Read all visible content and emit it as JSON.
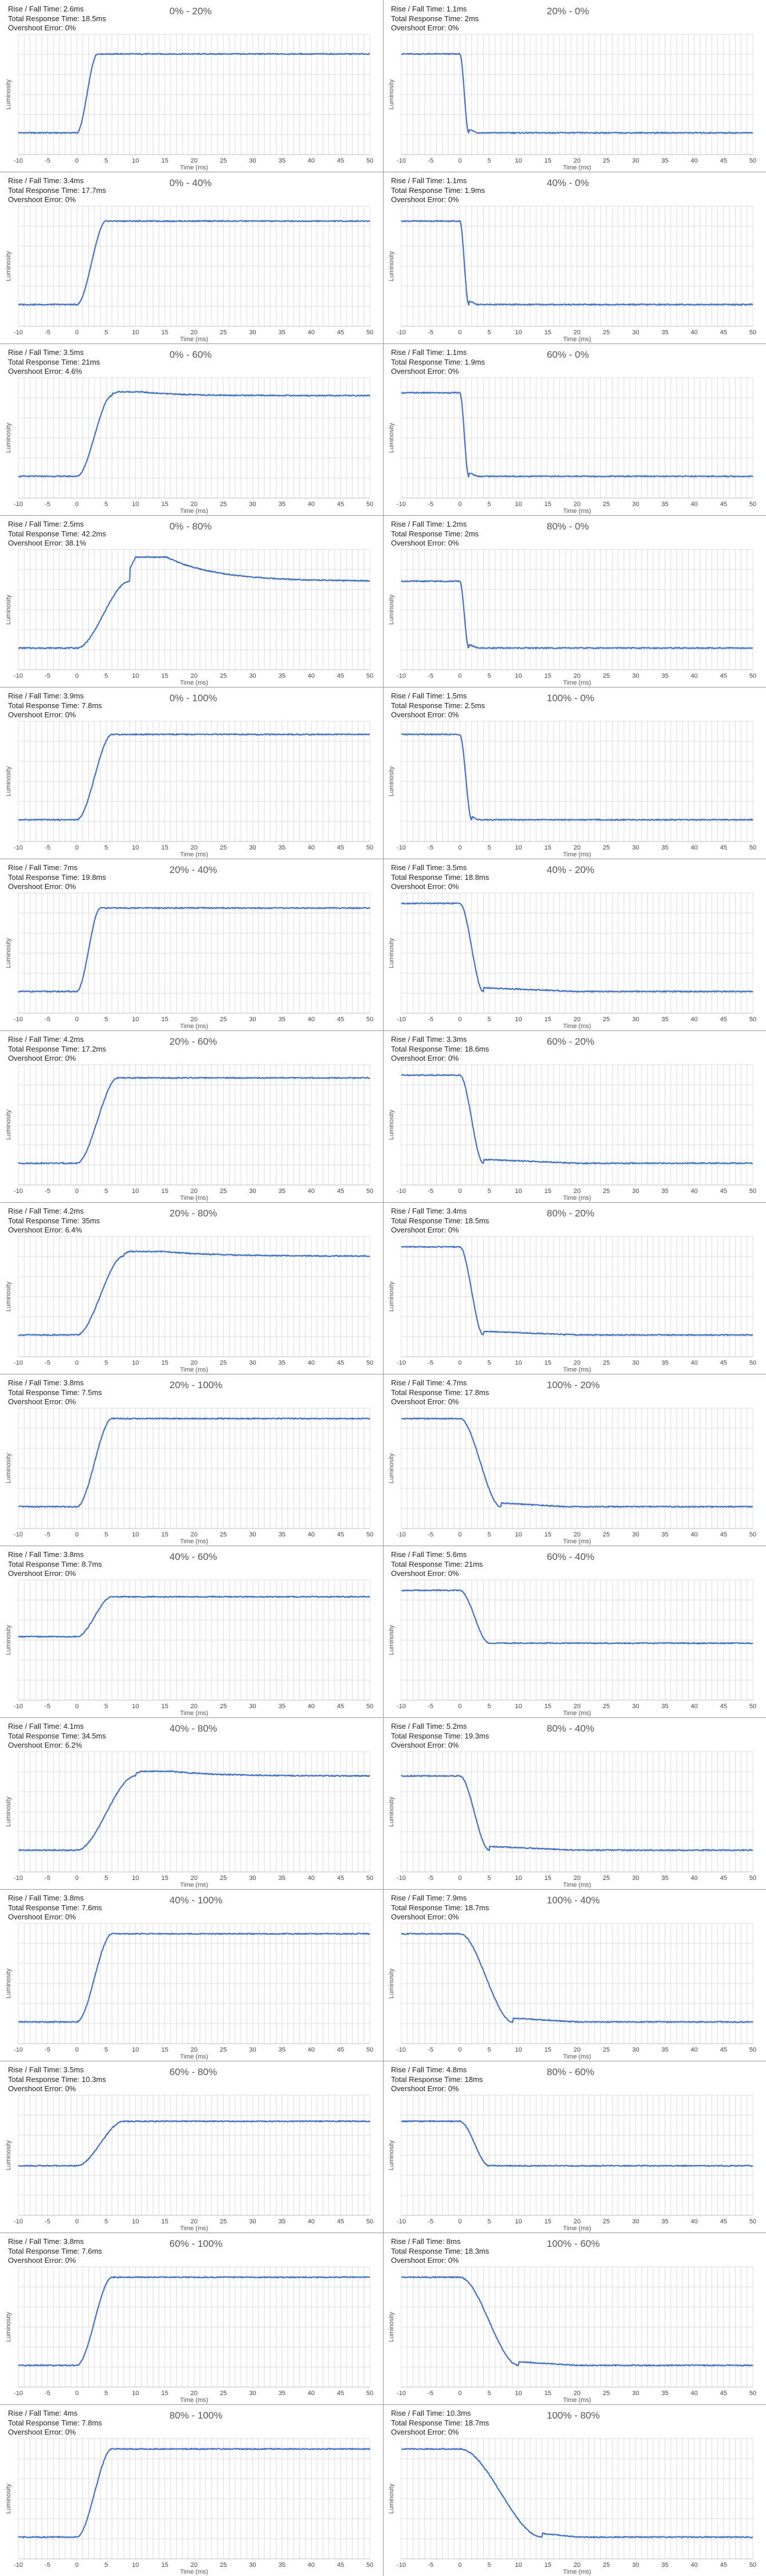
{
  "labels": {
    "rise_fall": "Rise / Fall Time: ",
    "total_response": "Total Response Time: ",
    "overshoot": "Overshoot Error: ",
    "xlabel": "Time (ms)",
    "ylabel": "Luminosity"
  },
  "colors": {
    "trace": "#4472c4",
    "grid": "#dcdcdc",
    "divider": "#9a9a9a"
  },
  "chart_data": [
    {
      "type": "line",
      "title": "0% - 20%",
      "rise_fall_time": "2.6ms",
      "total_response_time": "18.5ms",
      "overshoot_error": "0%",
      "xlim": [
        -10,
        50
      ],
      "x_ticks": [
        -10,
        -5,
        0,
        5,
        10,
        15,
        20,
        25,
        30,
        35,
        40,
        45,
        50
      ],
      "start_level": 0.0,
      "end_level": 0.85,
      "transition_start_ms": 0,
      "transition_ms": 3.5,
      "peak_level": 0.85,
      "settle_ms": 20
    },
    {
      "type": "line",
      "title": "20% - 0%",
      "rise_fall_time": "1.1ms",
      "total_response_time": "2ms",
      "overshoot_error": "0%",
      "xlim": [
        -10,
        50
      ],
      "x_ticks": [
        -10,
        -5,
        0,
        5,
        10,
        15,
        20,
        25,
        30,
        35,
        40,
        45,
        50
      ],
      "start_level": 0.85,
      "end_level": 0.0,
      "transition_start_ms": 0,
      "transition_ms": 1.5,
      "peak_level": 0.0,
      "settle_ms": 3
    },
    {
      "type": "line",
      "title": "0% - 40%",
      "rise_fall_time": "3.4ms",
      "total_response_time": "17.7ms",
      "overshoot_error": "0%",
      "xlim": [
        -10,
        50
      ],
      "x_ticks": [
        -10,
        -5,
        0,
        5,
        10,
        15,
        20,
        25,
        30,
        35,
        40,
        45,
        50
      ],
      "start_level": 0.0,
      "end_level": 0.9,
      "transition_start_ms": 0,
      "transition_ms": 5,
      "peak_level": 0.9,
      "settle_ms": 20
    },
    {
      "type": "line",
      "title": "40% - 0%",
      "rise_fall_time": "1.1ms",
      "total_response_time": "1.9ms",
      "overshoot_error": "0%",
      "xlim": [
        -10,
        50
      ],
      "x_ticks": [
        -10,
        -5,
        0,
        5,
        10,
        15,
        20,
        25,
        30,
        35,
        40,
        45,
        50
      ],
      "start_level": 0.9,
      "end_level": 0.0,
      "transition_start_ms": 0,
      "transition_ms": 1.5,
      "peak_level": 0.0,
      "settle_ms": 3
    },
    {
      "type": "line",
      "title": "0% - 60%",
      "rise_fall_time": "3.5ms",
      "total_response_time": "21ms",
      "overshoot_error": "4.6%",
      "xlim": [
        -10,
        50
      ],
      "x_ticks": [
        -10,
        -5,
        0,
        5,
        10,
        15,
        20,
        25,
        30,
        35,
        40,
        45,
        50
      ],
      "start_level": 0.0,
      "end_level": 0.87,
      "transition_start_ms": 0,
      "transition_ms": 6,
      "peak_level": 0.91,
      "settle_ms": 22
    },
    {
      "type": "line",
      "title": "60% - 0%",
      "rise_fall_time": "1.1ms",
      "total_response_time": "1.9ms",
      "overshoot_error": "0%",
      "xlim": [
        -10,
        50
      ],
      "x_ticks": [
        -10,
        -5,
        0,
        5,
        10,
        15,
        20,
        25,
        30,
        35,
        40,
        45,
        50
      ],
      "start_level": 0.9,
      "end_level": 0.0,
      "transition_start_ms": 0,
      "transition_ms": 1.5,
      "peak_level": 0.0,
      "settle_ms": 3
    },
    {
      "type": "line",
      "title": "0% - 80%",
      "rise_fall_time": "2.5ms",
      "total_response_time": "42.2ms",
      "overshoot_error": "38.1%",
      "xlim": [
        -10,
        50
      ],
      "x_ticks": [
        -10,
        -5,
        0,
        5,
        10,
        15,
        20,
        25,
        30,
        35,
        40,
        45,
        50
      ],
      "start_level": 0.0,
      "end_level": 0.72,
      "transition_start_ms": 0,
      "transition_ms": 9,
      "peak_level": 0.98,
      "settle_ms": 30
    },
    {
      "type": "line",
      "title": "80% - 0%",
      "rise_fall_time": "1.2ms",
      "total_response_time": "2ms",
      "overshoot_error": "0%",
      "xlim": [
        -10,
        50
      ],
      "x_ticks": [
        -10,
        -5,
        0,
        5,
        10,
        15,
        20,
        25,
        30,
        35,
        40,
        45,
        50
      ],
      "start_level": 0.72,
      "end_level": 0.0,
      "transition_start_ms": 0,
      "transition_ms": 1.5,
      "peak_level": 0.0,
      "settle_ms": 3
    },
    {
      "type": "line",
      "title": "0% - 100%",
      "rise_fall_time": "3.9ms",
      "total_response_time": "7.8ms",
      "overshoot_error": "0%",
      "xlim": [
        -10,
        50
      ],
      "x_ticks": [
        -10,
        -5,
        0,
        5,
        10,
        15,
        20,
        25,
        30,
        35,
        40,
        45,
        50
      ],
      "start_level": 0.0,
      "end_level": 0.92,
      "transition_start_ms": 0,
      "transition_ms": 6,
      "peak_level": 0.92,
      "settle_ms": 8
    },
    {
      "type": "line",
      "title": "100% - 0%",
      "rise_fall_time": "1.5ms",
      "total_response_time": "2.5ms",
      "overshoot_error": "0%",
      "xlim": [
        -10,
        50
      ],
      "x_ticks": [
        -10,
        -5,
        0,
        5,
        10,
        15,
        20,
        25,
        30,
        35,
        40,
        45,
        50
      ],
      "start_level": 0.92,
      "end_level": 0.0,
      "transition_start_ms": 0,
      "transition_ms": 2,
      "peak_level": 0.0,
      "settle_ms": 3
    },
    {
      "type": "line",
      "title": "20% - 40%",
      "rise_fall_time": "7ms",
      "total_response_time": "19.8ms",
      "overshoot_error": "0%",
      "xlim": [
        -10,
        50
      ],
      "x_ticks": [
        -10,
        -5,
        0,
        5,
        10,
        15,
        20,
        25,
        30,
        35,
        40,
        45,
        50
      ],
      "start_level": 0.0,
      "end_level": 0.9,
      "transition_start_ms": 0,
      "transition_ms": 4,
      "peak_level": 0.9,
      "settle_ms": 20
    },
    {
      "type": "line",
      "title": "40% - 20%",
      "rise_fall_time": "3.5ms",
      "total_response_time": "18.8ms",
      "overshoot_error": "0%",
      "xlim": [
        -10,
        50
      ],
      "x_ticks": [
        -10,
        -5,
        0,
        5,
        10,
        15,
        20,
        25,
        30,
        35,
        40,
        45,
        50
      ],
      "start_level": 0.95,
      "end_level": 0.0,
      "transition_start_ms": 0,
      "transition_ms": 4,
      "peak_level": 0.0,
      "settle_ms": 20
    },
    {
      "type": "line",
      "title": "20% - 60%",
      "rise_fall_time": "4.2ms",
      "total_response_time": "17.2ms",
      "overshoot_error": "0%",
      "xlim": [
        -10,
        50
      ],
      "x_ticks": [
        -10,
        -5,
        0,
        5,
        10,
        15,
        20,
        25,
        30,
        35,
        40,
        45,
        50
      ],
      "start_level": 0.0,
      "end_level": 0.92,
      "transition_start_ms": 0,
      "transition_ms": 7,
      "peak_level": 0.92,
      "settle_ms": 18
    },
    {
      "type": "line",
      "title": "60% - 20%",
      "rise_fall_time": "3.3ms",
      "total_response_time": "18.6ms",
      "overshoot_error": "0%",
      "xlim": [
        -10,
        50
      ],
      "x_ticks": [
        -10,
        -5,
        0,
        5,
        10,
        15,
        20,
        25,
        30,
        35,
        40,
        45,
        50
      ],
      "start_level": 0.95,
      "end_level": 0.0,
      "transition_start_ms": 0,
      "transition_ms": 4,
      "peak_level": 0.0,
      "settle_ms": 20
    },
    {
      "type": "line",
      "title": "20% - 80%",
      "rise_fall_time": "4.2ms",
      "total_response_time": "35ms",
      "overshoot_error": "6.4%",
      "xlim": [
        -10,
        50
      ],
      "x_ticks": [
        -10,
        -5,
        0,
        5,
        10,
        15,
        20,
        25,
        30,
        35,
        40,
        45,
        50
      ],
      "start_level": 0.0,
      "end_level": 0.85,
      "transition_start_ms": 0,
      "transition_ms": 8,
      "peak_level": 0.9,
      "settle_ms": 30
    },
    {
      "type": "line",
      "title": "80% - 20%",
      "rise_fall_time": "3.4ms",
      "total_response_time": "18.5ms",
      "overshoot_error": "0%",
      "xlim": [
        -10,
        50
      ],
      "x_ticks": [
        -10,
        -5,
        0,
        5,
        10,
        15,
        20,
        25,
        30,
        35,
        40,
        45,
        50
      ],
      "start_level": 0.95,
      "end_level": 0.0,
      "transition_start_ms": 0,
      "transition_ms": 4,
      "peak_level": 0.0,
      "settle_ms": 20
    },
    {
      "type": "line",
      "title": "20% - 100%",
      "rise_fall_time": "3.8ms",
      "total_response_time": "7.5ms",
      "overshoot_error": "0%",
      "xlim": [
        -10,
        50
      ],
      "x_ticks": [
        -10,
        -5,
        0,
        5,
        10,
        15,
        20,
        25,
        30,
        35,
        40,
        45,
        50
      ],
      "start_level": 0.0,
      "end_level": 0.95,
      "transition_start_ms": 0,
      "transition_ms": 6,
      "peak_level": 0.95,
      "settle_ms": 8
    },
    {
      "type": "line",
      "title": "100% - 20%",
      "rise_fall_time": "4.7ms",
      "total_response_time": "17.8ms",
      "overshoot_error": "0%",
      "xlim": [
        -10,
        50
      ],
      "x_ticks": [
        -10,
        -5,
        0,
        5,
        10,
        15,
        20,
        25,
        30,
        35,
        40,
        45,
        50
      ],
      "start_level": 0.95,
      "end_level": 0.0,
      "transition_start_ms": 0,
      "transition_ms": 7,
      "peak_level": 0.0,
      "settle_ms": 18
    },
    {
      "type": "line",
      "title": "40% - 60%",
      "rise_fall_time": "3.8ms",
      "total_response_time": "8.7ms",
      "overshoot_error": "0%",
      "xlim": [
        -10,
        50
      ],
      "x_ticks": [
        -10,
        -5,
        0,
        5,
        10,
        15,
        20,
        25,
        30,
        35,
        40,
        45,
        50
      ],
      "start_level": 0.45,
      "end_level": 0.88,
      "transition_start_ms": 0,
      "transition_ms": 6,
      "peak_level": 0.88,
      "settle_ms": 9
    },
    {
      "type": "line",
      "title": "60% - 40%",
      "rise_fall_time": "5.6ms",
      "total_response_time": "21ms",
      "overshoot_error": "0%",
      "xlim": [
        -10,
        50
      ],
      "x_ticks": [
        -10,
        -5,
        0,
        5,
        10,
        15,
        20,
        25,
        30,
        35,
        40,
        45,
        50
      ],
      "start_level": 0.95,
      "end_level": 0.38,
      "transition_start_ms": 0,
      "transition_ms": 5,
      "peak_level": 0.38,
      "settle_ms": 22
    },
    {
      "type": "line",
      "title": "40% - 80%",
      "rise_fall_time": "4.1ms",
      "total_response_time": "34.5ms",
      "overshoot_error": "6.2%",
      "xlim": [
        -10,
        50
      ],
      "x_ticks": [
        -10,
        -5,
        0,
        5,
        10,
        15,
        20,
        25,
        30,
        35,
        40,
        45,
        50
      ],
      "start_level": 0.0,
      "end_level": 0.8,
      "transition_start_ms": 0,
      "transition_ms": 10,
      "peak_level": 0.85,
      "settle_ms": 30
    },
    {
      "type": "line",
      "title": "80% - 40%",
      "rise_fall_time": "5.2ms",
      "total_response_time": "19.3ms",
      "overshoot_error": "0%",
      "xlim": [
        -10,
        50
      ],
      "x_ticks": [
        -10,
        -5,
        0,
        5,
        10,
        15,
        20,
        25,
        30,
        35,
        40,
        45,
        50
      ],
      "start_level": 0.8,
      "end_level": 0.0,
      "transition_start_ms": 0,
      "transition_ms": 5,
      "peak_level": 0.0,
      "settle_ms": 20
    },
    {
      "type": "line",
      "title": "40% - 100%",
      "rise_fall_time": "3.8ms",
      "total_response_time": "7.6ms",
      "overshoot_error": "0%",
      "xlim": [
        -10,
        50
      ],
      "x_ticks": [
        -10,
        -5,
        0,
        5,
        10,
        15,
        20,
        25,
        30,
        35,
        40,
        45,
        50
      ],
      "start_level": 0.0,
      "end_level": 0.95,
      "transition_start_ms": 0,
      "transition_ms": 6,
      "peak_level": 0.95,
      "settle_ms": 8
    },
    {
      "type": "line",
      "title": "100% - 40%",
      "rise_fall_time": "7.9ms",
      "total_response_time": "18.7ms",
      "overshoot_error": "0%",
      "xlim": [
        -10,
        50
      ],
      "x_ticks": [
        -10,
        -5,
        0,
        5,
        10,
        15,
        20,
        25,
        30,
        35,
        40,
        45,
        50
      ],
      "start_level": 0.95,
      "end_level": 0.0,
      "transition_start_ms": 0,
      "transition_ms": 9,
      "peak_level": 0.0,
      "settle_ms": 20
    },
    {
      "type": "line",
      "title": "60% - 80%",
      "rise_fall_time": "3.5ms",
      "total_response_time": "10.3ms",
      "overshoot_error": "0%",
      "xlim": [
        -10,
        50
      ],
      "x_ticks": [
        -10,
        -5,
        0,
        5,
        10,
        15,
        20,
        25,
        30,
        35,
        40,
        45,
        50
      ],
      "start_level": 0.3,
      "end_level": 0.78,
      "transition_start_ms": 0,
      "transition_ms": 8,
      "peak_level": 0.78,
      "settle_ms": 11
    },
    {
      "type": "line",
      "title": "80% - 60%",
      "rise_fall_time": "4.8ms",
      "total_response_time": "18ms",
      "overshoot_error": "0%",
      "xlim": [
        -10,
        50
      ],
      "x_ticks": [
        -10,
        -5,
        0,
        5,
        10,
        15,
        20,
        25,
        30,
        35,
        40,
        45,
        50
      ],
      "start_level": 0.78,
      "end_level": 0.3,
      "transition_start_ms": 0,
      "transition_ms": 5,
      "peak_level": 0.3,
      "settle_ms": 18
    },
    {
      "type": "line",
      "title": "60% - 100%",
      "rise_fall_time": "3.8ms",
      "total_response_time": "7.6ms",
      "overshoot_error": "0%",
      "xlim": [
        -10,
        50
      ],
      "x_ticks": [
        -10,
        -5,
        0,
        5,
        10,
        15,
        20,
        25,
        30,
        35,
        40,
        45,
        50
      ],
      "start_level": 0.0,
      "end_level": 0.95,
      "transition_start_ms": 0,
      "transition_ms": 6,
      "peak_level": 0.95,
      "settle_ms": 8
    },
    {
      "type": "line",
      "title": "100% - 60%",
      "rise_fall_time": "8ms",
      "total_response_time": "18.3ms",
      "overshoot_error": "0%",
      "xlim": [
        -10,
        50
      ],
      "x_ticks": [
        -10,
        -5,
        0,
        5,
        10,
        15,
        20,
        25,
        30,
        35,
        40,
        45,
        50
      ],
      "start_level": 0.95,
      "end_level": 0.0,
      "transition_start_ms": 0,
      "transition_ms": 10,
      "peak_level": 0.0,
      "settle_ms": 20
    },
    {
      "type": "line",
      "title": "80% - 100%",
      "rise_fall_time": "4ms",
      "total_response_time": "7.8ms",
      "overshoot_error": "0%",
      "xlim": [
        -10,
        50
      ],
      "x_ticks": [
        -10,
        -5,
        0,
        5,
        10,
        15,
        20,
        25,
        30,
        35,
        40,
        45,
        50
      ],
      "start_level": 0.0,
      "end_level": 0.95,
      "transition_start_ms": 0,
      "transition_ms": 6,
      "peak_level": 0.95,
      "settle_ms": 8
    },
    {
      "type": "line",
      "title": "100% - 80%",
      "rise_fall_time": "10.3ms",
      "total_response_time": "18.7ms",
      "overshoot_error": "0%",
      "xlim": [
        -10,
        50
      ],
      "x_ticks": [
        -10,
        -5,
        0,
        5,
        10,
        15,
        20,
        25,
        30,
        35,
        40,
        45,
        50
      ],
      "start_level": 0.95,
      "end_level": 0.0,
      "transition_start_ms": 0,
      "transition_ms": 14,
      "peak_level": 0.0,
      "settle_ms": 20
    }
  ]
}
